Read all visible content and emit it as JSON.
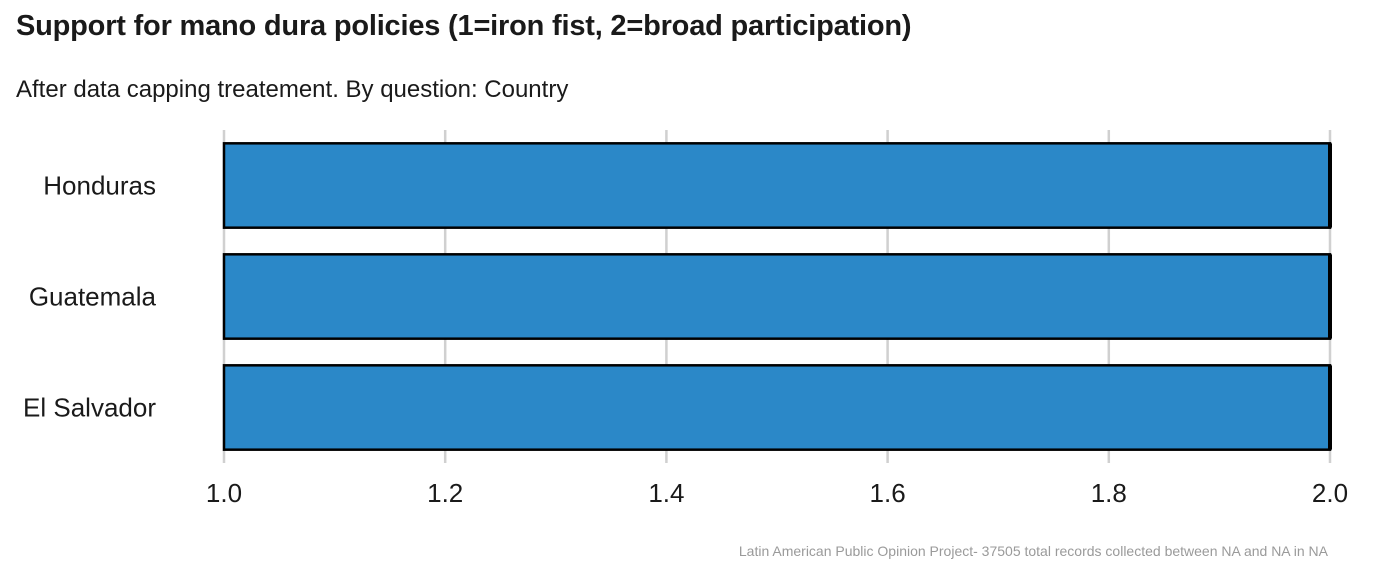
{
  "chart_data": {
    "type": "bar",
    "orientation": "horizontal",
    "title": "Support for mano dura policies (1=iron fist, 2=broad participation)",
    "subtitle": "After data capping treatement. By question: Country",
    "caption": "Latin American Public Opinion Project- 37505 total records collected between NA and NA in  NA",
    "categories": [
      "Honduras",
      "Guatemala",
      "El Salvador"
    ],
    "values": [
      2.0,
      2.0,
      2.0
    ],
    "xlim": [
      1.0,
      2.0
    ],
    "xticks": [
      "1.0",
      "1.2",
      "1.4",
      "1.6",
      "1.8",
      "2.0"
    ],
    "xtick_values": [
      1.0,
      1.2,
      1.4,
      1.6,
      1.8,
      2.0
    ],
    "bar_color": "#2B88C8",
    "bar_border_color": "#000000",
    "grid": true,
    "legend": "none"
  }
}
